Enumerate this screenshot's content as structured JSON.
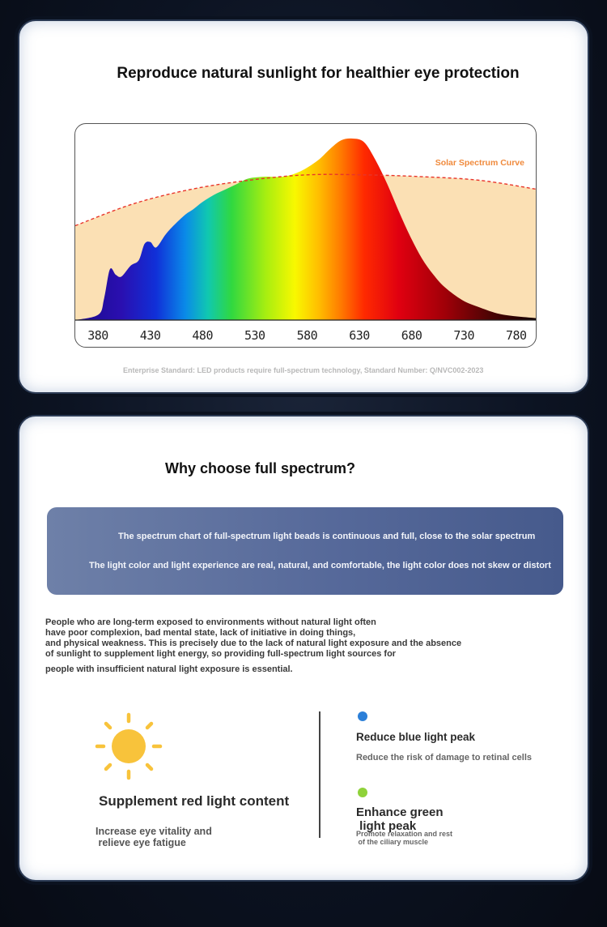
{
  "section1": {
    "title": "Reproduce natural sunlight for healthier eye protection",
    "curve_label": "Solar Spectrum Curve",
    "standard_note": "Enterprise Standard: LED products require full-spectrum technology, Standard Number: Q/NVC002-2023"
  },
  "chart_data": {
    "type": "area",
    "x_ticks": [
      "380",
      "430",
      "480",
      "530",
      "580",
      "630",
      "680",
      "730",
      "780"
    ],
    "xlim": [
      380,
      780
    ],
    "series": [
      {
        "name": "Solar Spectrum Curve",
        "style": "dashed",
        "color": "#e8342a",
        "x": [
          380,
          430,
          480,
          530,
          580,
          630,
          680,
          730,
          780
        ],
        "y": [
          0.52,
          0.64,
          0.72,
          0.77,
          0.8,
          0.8,
          0.79,
          0.77,
          0.72
        ]
      },
      {
        "name": "",
        "style": "spectrum-fill",
        "x": [
          380,
          400,
          405,
          410,
          415,
          420,
          428,
          435,
          440,
          445,
          450,
          458,
          465,
          475,
          482,
          490,
          500,
          510,
          520,
          530,
          545,
          560,
          575,
          590,
          600,
          610,
          620,
          630,
          640,
          650,
          660,
          670,
          680,
          690,
          700,
          715,
          730,
          750,
          780
        ],
        "y": [
          0.0,
          0.03,
          0.12,
          0.28,
          0.25,
          0.24,
          0.3,
          0.33,
          0.42,
          0.43,
          0.4,
          0.47,
          0.52,
          0.58,
          0.61,
          0.65,
          0.69,
          0.72,
          0.75,
          0.78,
          0.79,
          0.79,
          0.82,
          0.88,
          0.94,
          0.99,
          1.0,
          0.98,
          0.88,
          0.75,
          0.6,
          0.46,
          0.34,
          0.25,
          0.18,
          0.11,
          0.07,
          0.03,
          0.01
        ]
      }
    ],
    "ylim": [
      0,
      1
    ],
    "grid": false,
    "background_fill": "#fbe0b4"
  },
  "section2": {
    "title": "Why choose full spectrum?",
    "banner_line1": "The spectrum chart of full-spectrum light beads is continuous and full, close to the solar spectrum",
    "banner_line2": "The light color and light experience are real, natural, and comfortable, the light color does not skew or distort",
    "paragraph": [
      "People who are long-term exposed to environments without natural light often",
      " have poor complexion, bad mental state, lack of initiative in doing things,",
      "and physical weakness. This is precisely due to the lack of natural light exposure and the absence",
      " of sunlight to supplement light energy, so providing full-spectrum light sources for",
      "people with insufficient natural light exposure is essential."
    ],
    "features": {
      "red": {
        "title": "Supplement red light content",
        "desc_line1": "Increase eye vitality and",
        "desc_line2": " relieve eye fatigue",
        "icon": "sun-icon",
        "color": "#f8c33b"
      },
      "blue": {
        "title": "Reduce blue light peak",
        "desc": "Reduce the risk of damage to retinal cells",
        "color": "#2b7fd8"
      },
      "green": {
        "title_line1": "Enhance green",
        "title_line2": " light peak",
        "desc_line1": "Promote relaxation and rest",
        "desc_line2": " of the ciliary muscle",
        "color": "#8fd23a"
      }
    }
  }
}
